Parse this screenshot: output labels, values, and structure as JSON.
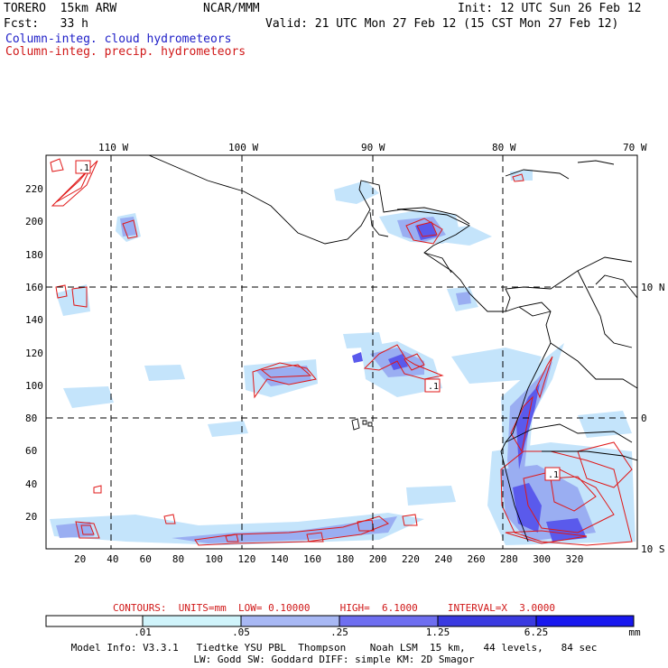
{
  "header": {
    "model": "TORERO  15km ARW",
    "org": "NCAR/MMM",
    "init": "Init: 12 UTC Sun 26 Feb 12",
    "fcst": "Fcst:   33 h",
    "valid": "Valid: 21 UTC Mon 27 Feb 12 (15 CST Mon 27 Feb 12)",
    "legend_cloud": "Column-integ. cloud hydrometeors",
    "legend_precip": "Column-integ. precip. hydrometeors"
  },
  "map": {
    "lon_labels": [
      "110 W",
      "100 W",
      "90 W",
      "80 W",
      "70 W"
    ],
    "lat_labels": [
      "10 N",
      "0",
      "10 S"
    ],
    "grid_x_ticks": [
      "20",
      "40",
      "60",
      "80",
      "100",
      "120",
      "140",
      "160",
      "180",
      "200",
      "220",
      "240",
      "260",
      "280",
      "300",
      "320"
    ],
    "grid_y_ticks": [
      "20",
      "40",
      "60",
      "80",
      "100",
      "120",
      "140",
      "160",
      "180",
      "200",
      "220"
    ],
    "contour_label": ".1"
  },
  "contour_info": "CONTOURS:  UNITS=mm  LOW= 0.10000     HIGH=  6.1000     INTERVAL=X  3.0000",
  "colorbar": {
    "labels": [
      ".01",
      ".05",
      ".25",
      "1.25",
      "6.25"
    ],
    "unit": "mm",
    "colors": [
      "#ffffff",
      "#d0f4fb",
      "#a8b8f4",
      "#6e6ef0",
      "#3a3ae0",
      "#1818ee"
    ]
  },
  "model_info_1": "Model Info: V3.3.1   Tiedtke YSU PBL  Thompson    Noah LSM  15 km,   44 levels,   84 sec",
  "model_info_2": "LW: Godd SW: Goddard DIFF: simple KM: 2D Smagor"
}
